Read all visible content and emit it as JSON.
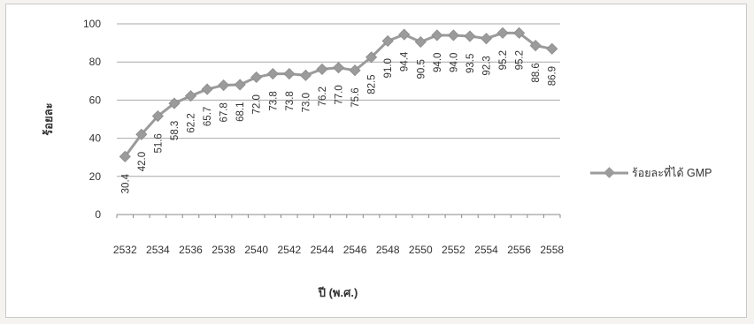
{
  "chart_data": {
    "type": "line",
    "x": [
      2532,
      2533,
      2534,
      2535,
      2536,
      2537,
      2538,
      2539,
      2540,
      2541,
      2542,
      2543,
      2544,
      2545,
      2546,
      2547,
      2548,
      2549,
      2550,
      2551,
      2552,
      2553,
      2554,
      2555,
      2556,
      2557,
      2558
    ],
    "x_tick_labels": [
      "2532",
      "2534",
      "2536",
      "2538",
      "2540",
      "2542",
      "2544",
      "2546",
      "2548",
      "2550",
      "2552",
      "2554",
      "2556",
      "2558"
    ],
    "series": [
      {
        "name": "ร้อยละที่ได้ GMP",
        "values": [
          30.4,
          42.0,
          51.6,
          58.3,
          62.2,
          65.7,
          67.8,
          68.1,
          72.0,
          73.8,
          73.8,
          73.0,
          76.2,
          77.0,
          75.6,
          82.5,
          91.0,
          94.4,
          90.5,
          94.0,
          94.0,
          93.5,
          92.3,
          95.2,
          95.2,
          88.6,
          86.9
        ],
        "data_labels": [
          "30.4",
          "42.0",
          "51.6",
          "58.3",
          "62.2",
          "65.7",
          "67.8",
          "68.1",
          "72.0",
          "73.8",
          "73.8",
          "73.0",
          "76.2",
          "77.0",
          "75.6",
          "82.5",
          "91.0",
          "94.4",
          "90.5",
          "94.0",
          "94.0",
          "93.5",
          "92.3",
          "95.2",
          "95.2",
          "88.6",
          "86.9"
        ],
        "color": "#9b9b9b"
      }
    ],
    "xlabel": "ปี (พ.ศ.)",
    "ylabel": "ร้อยละ",
    "ylim": [
      0,
      100
    ],
    "y_ticks": [
      "0",
      "20",
      "40",
      "60",
      "80",
      "100"
    ],
    "grid": true,
    "legend_position": "right"
  }
}
